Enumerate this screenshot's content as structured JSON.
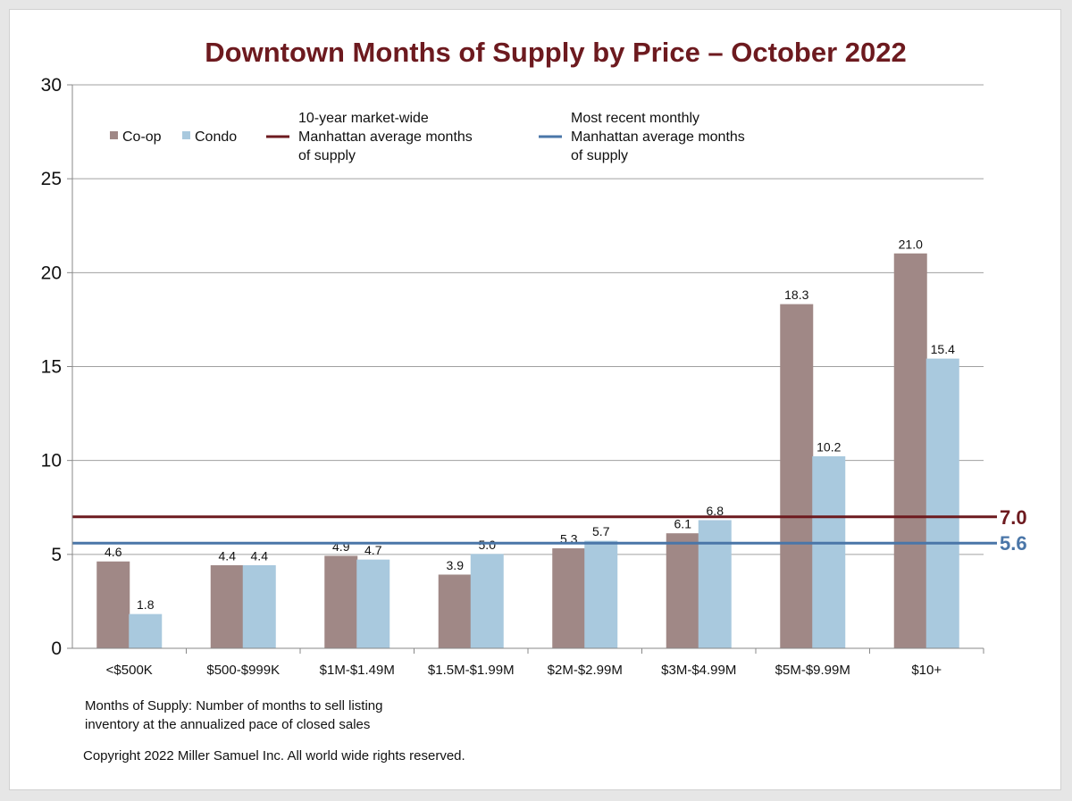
{
  "chart_data": {
    "type": "bar",
    "title": "Downtown Months of Supply by Price – October 2022",
    "categories": [
      "<$500K",
      "$500-$999K",
      "$1M-$1.49M",
      "$1.5M-$1.99M",
      "$2M-$2.99M",
      "$3M-$4.99M",
      "$5M-$9.99M",
      "$10+"
    ],
    "series": [
      {
        "name": "Co-op",
        "values": [
          4.6,
          4.4,
          4.9,
          3.9,
          5.3,
          6.1,
          18.3,
          21.0
        ],
        "labels": [
          "4.6",
          "4.4",
          "4.9",
          "3.9",
          "5.3",
          "6.1",
          "18.3",
          "21.0"
        ],
        "color": "#a08886"
      },
      {
        "name": "Condo",
        "values": [
          1.8,
          4.4,
          4.7,
          5.0,
          5.7,
          6.8,
          10.2,
          15.4
        ],
        "labels": [
          "1.8",
          "4.4",
          "4.7",
          "5.0",
          "5.7",
          "6.8",
          "10.2",
          "15.4"
        ],
        "color": "#a9c9de"
      }
    ],
    "reference_lines": [
      {
        "name": "10-year market-wide Manhattan average months of supply",
        "legend_lines": [
          "10-year market-wide",
          "Manhattan average months",
          "of supply"
        ],
        "value": 7.0,
        "label": "7.0",
        "color": "#6d1a1f"
      },
      {
        "name": "Most recent monthly Manhattan average months of supply",
        "legend_lines": [
          "Most recent monthly",
          "Manhattan average months",
          "of supply"
        ],
        "value": 5.6,
        "label": "5.6",
        "color": "#4a76a8"
      }
    ],
    "ylim": [
      0,
      30
    ],
    "yticks": [
      "0",
      "5",
      "10",
      "15",
      "20",
      "25",
      "30"
    ],
    "ytick_values": [
      0,
      5,
      10,
      15,
      20,
      25,
      30
    ],
    "grid": true,
    "legend_position": "top-left",
    "xlabel": "",
    "ylabel": ""
  },
  "colors": {
    "title": "#6d1a1f",
    "grid": "#a0a0a0",
    "axis": "#888888"
  },
  "notes": {
    "definition_line1": "Months of Supply: Number of months to sell listing",
    "definition_line2": "inventory at the annualized pace of closed sales",
    "copyright": "Copyright 2022 Miller Samuel Inc.  All world wide rights reserved."
  }
}
